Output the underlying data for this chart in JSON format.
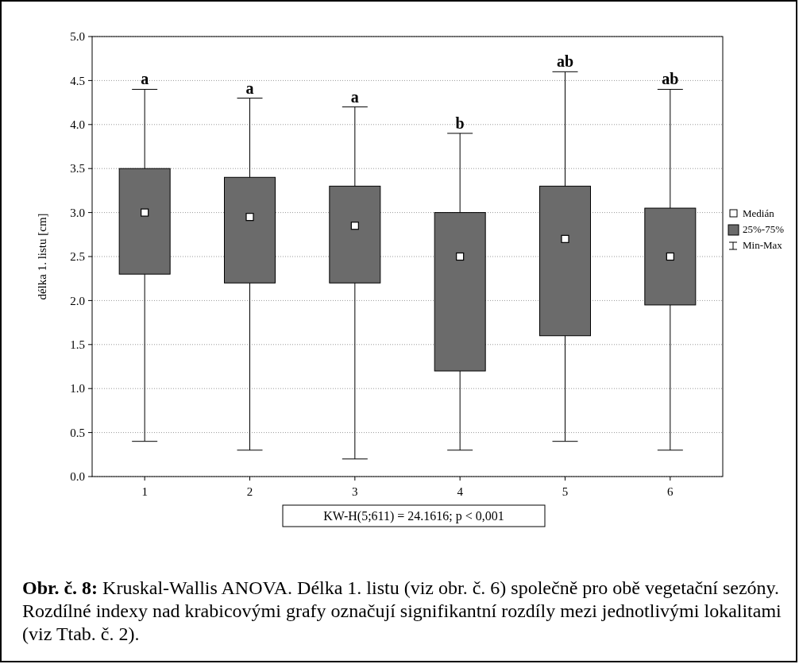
{
  "chart_data": {
    "type": "box",
    "categories": [
      "1",
      "2",
      "3",
      "4",
      "5",
      "6"
    ],
    "ylabel": "délka 1. listu [cm]",
    "ylim": [
      0,
      5
    ],
    "yticks": [
      {
        "value": 0,
        "label": "0.0"
      },
      {
        "value": 0.5,
        "label": "0.5"
      },
      {
        "value": 1,
        "label": "1.0"
      },
      {
        "value": 1.5,
        "label": "1.5"
      },
      {
        "value": 2,
        "label": "2.0"
      },
      {
        "value": 2.5,
        "label": "2.5"
      },
      {
        "value": 3,
        "label": "3.0"
      },
      {
        "value": 3.5,
        "label": "3.5"
      },
      {
        "value": 4,
        "label": "4.0"
      },
      {
        "value": 4.5,
        "label": "4.5"
      },
      {
        "value": 5,
        "label": "5.0"
      }
    ],
    "grid": "y",
    "marker": "square",
    "series": [
      {
        "color": "#6b6b6b",
        "boxes": [
          {
            "low": 0.4,
            "q1": 2.3,
            "median": 3.0,
            "q3": 3.5,
            "high": 4.4
          },
          {
            "low": 0.3,
            "q1": 2.2,
            "median": 2.95,
            "q3": 3.4,
            "high": 4.3
          },
          {
            "low": 0.2,
            "q1": 2.2,
            "median": 2.85,
            "q3": 3.3,
            "high": 4.2
          },
          {
            "low": 0.3,
            "q1": 1.2,
            "median": 2.5,
            "q3": 3.0,
            "high": 3.9
          },
          {
            "low": 0.4,
            "q1": 1.6,
            "median": 2.7,
            "q3": 3.3,
            "high": 4.6
          },
          {
            "low": 0.3,
            "q1": 1.95,
            "median": 2.5,
            "q3": 3.05,
            "high": 4.4
          }
        ]
      }
    ],
    "annotations": [
      {
        "text": "a",
        "x": "1",
        "y": 4.4
      },
      {
        "text": "a",
        "x": "2",
        "y": 4.3
      },
      {
        "text": "a",
        "x": "3",
        "y": 4.2
      },
      {
        "text": "b",
        "x": "4",
        "y": 3.9
      },
      {
        "text": "ab",
        "x": "5",
        "y": 4.6
      },
      {
        "text": "ab",
        "x": "6",
        "y": 4.4
      },
      "KW-H(5;611) = 24.1616; p < 0,001",
      "Medián",
      "25%-75%",
      "Min-Max",
      "Obr. č. 8:",
      "Kruskal-Wallis ANOVA. Délka 1. listu (viz obr. č. 6) společně pro obě vegetační sezóny. Rozdílné indexy nad krabicovými grafy označují signifikantní rozdíly mezi jednotlivými lokalitami (viz Ttab. č. 2)."
    ]
  }
}
